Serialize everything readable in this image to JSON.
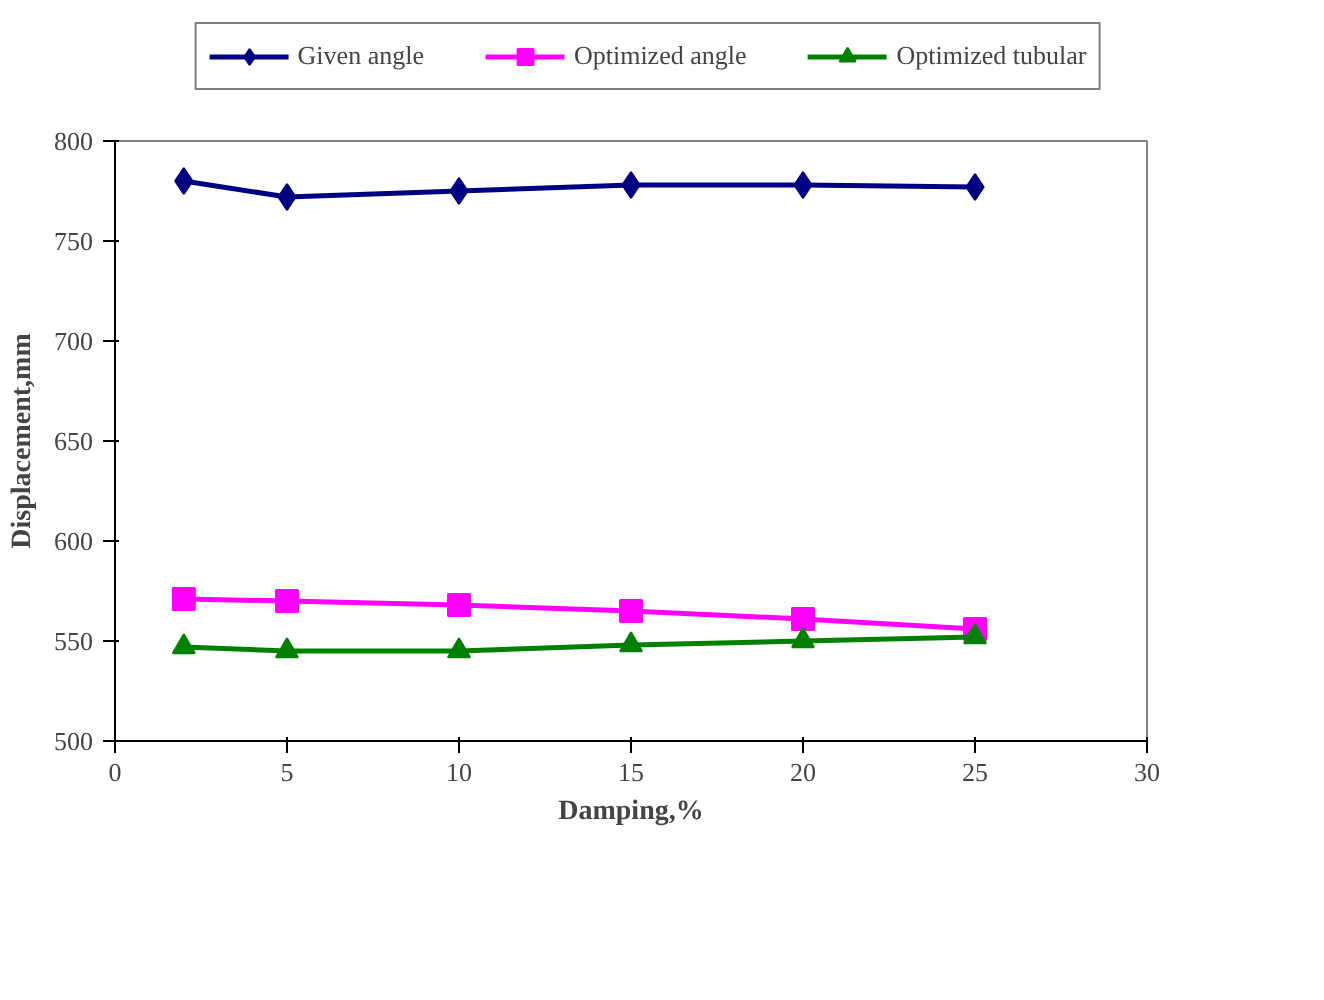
{
  "chart_data": {
    "type": "line",
    "xlabel": "Damping,%",
    "ylabel": "Displacement,mm",
    "x": [
      2,
      5,
      10,
      15,
      20,
      25
    ],
    "series": [
      {
        "name": "Given angle",
        "color": "#000080",
        "marker": "diamond",
        "values": [
          780,
          772,
          775,
          778,
          778,
          777
        ]
      },
      {
        "name": "Optimized angle",
        "color": "#ff00ff",
        "marker": "square",
        "values": [
          571,
          570,
          568,
          565,
          561,
          556
        ]
      },
      {
        "name": "Optimized tubular",
        "color": "#008000",
        "marker": "triangle",
        "values": [
          547,
          545,
          545,
          548,
          550,
          552
        ]
      }
    ],
    "xlim": [
      0,
      30
    ],
    "xticks": [
      0,
      5,
      10,
      15,
      20,
      25,
      30
    ],
    "ylim": [
      500,
      800
    ],
    "yticks": [
      500,
      550,
      600,
      650,
      700,
      750,
      800
    ],
    "grid": false,
    "legend": "top",
    "line_style": "solid"
  }
}
